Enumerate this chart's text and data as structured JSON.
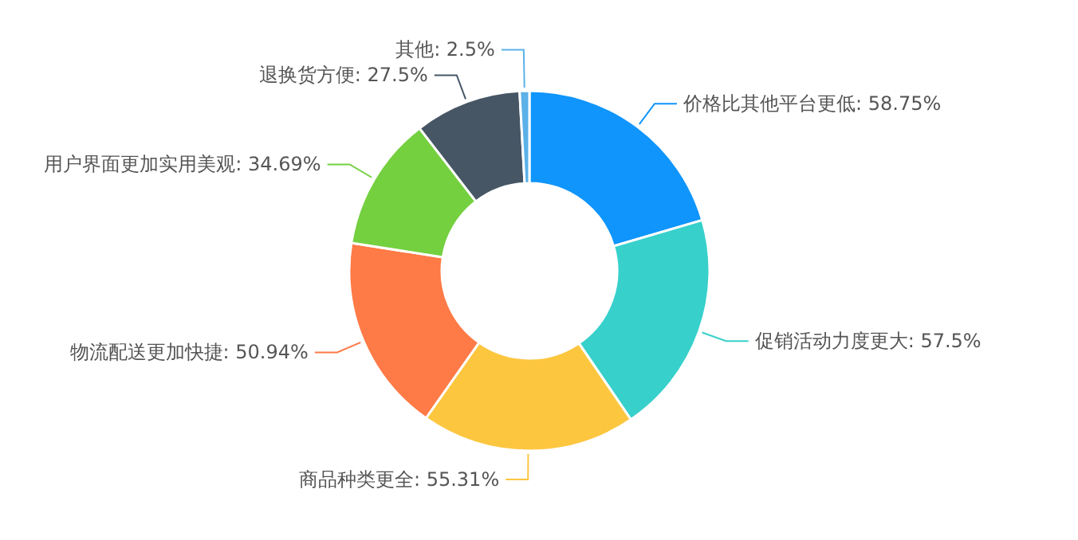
{
  "chart_data": {
    "type": "donut",
    "categories": [
      "价格比其他平台更低",
      "促销活动力度更大",
      "商品种类更全",
      "物流配送更加快捷",
      "用户界面更加实用美观",
      "退换货方便",
      "其他"
    ],
    "values": [
      58.75,
      57.5,
      55.31,
      50.94,
      34.69,
      27.5,
      2.5
    ],
    "value_labels": [
      "58.75%",
      "57.5%",
      "55.31%",
      "50.94%",
      "34.69%",
      "27.5%",
      "2.5%"
    ],
    "colors": [
      "#0f95fb",
      "#38d0cb",
      "#fcc63f",
      "#fe7a46",
      "#74d03f",
      "#465665",
      "#5bb1e8"
    ]
  }
}
